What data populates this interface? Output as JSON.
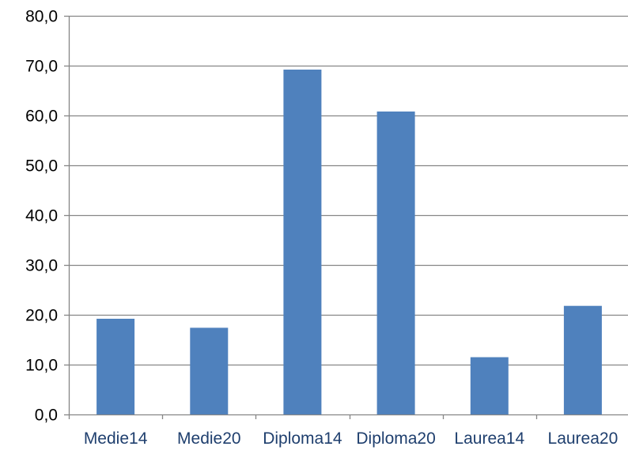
{
  "chart_data": {
    "type": "bar",
    "categories": [
      "Medie14",
      "Medie20",
      "Diploma14",
      "Diploma20",
      "Laurea14",
      "Laurea20"
    ],
    "series": [
      {
        "values": [
          19.2,
          17.4,
          69.2,
          60.8,
          11.5,
          21.8
        ],
        "color": "#4f81bd"
      }
    ],
    "yticks": [
      "0,0",
      "10,0",
      "20,0",
      "30,0",
      "40,0",
      "50,0",
      "60,0",
      "70,0",
      "80,0"
    ],
    "ylim": [
      0,
      80
    ],
    "ystep": 10,
    "grid": true,
    "legend": "none",
    "title": "",
    "xlabel": "",
    "ylabel": ""
  }
}
